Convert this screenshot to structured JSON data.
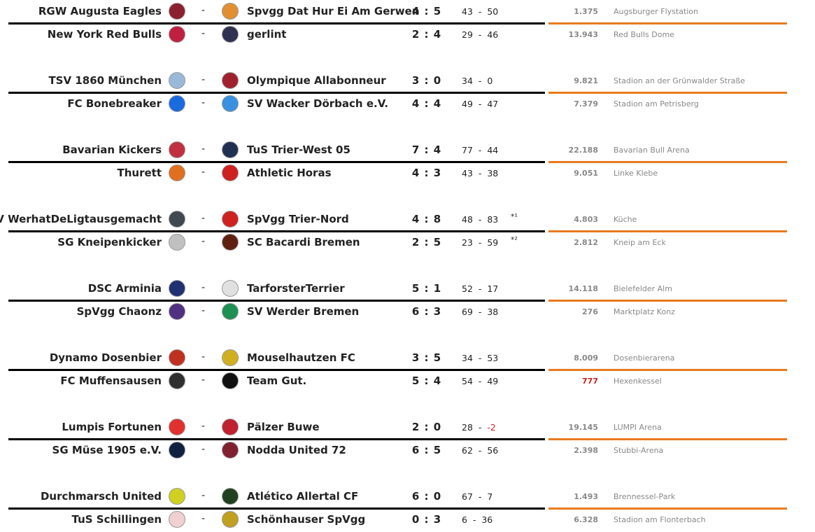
{
  "pairs": [
    {
      "matches": [
        {
          "home": "RGW Augusta Eagles",
          "home_logo": "#8a2030",
          "away": "Spvgg Dat Hur Ei Am Gerwen",
          "away_logo": "#e09030",
          "score": "4 : 5",
          "points_home": "43",
          "points_away": "50",
          "note": "",
          "attendance": "1.375",
          "stadium": "Augsburger Flystation"
        },
        {
          "home": "New York Red Bulls",
          "home_logo": "#c02040",
          "away": "gerlint",
          "away_logo": "#303050",
          "score": "2 : 4",
          "points_home": "29",
          "points_away": "46",
          "note": "",
          "attendance": "13.943",
          "stadium": "Red Bulls Dome"
        }
      ]
    },
    {
      "matches": [
        {
          "home": "TSV 1860 München",
          "home_logo": "#9ab8d8",
          "away": "Olympique Allabonneur",
          "away_logo": "#a02030",
          "score": "3 : 0",
          "points_home": "34",
          "points_away": "0",
          "note": "",
          "attendance": "9.821",
          "stadium": "Stadion an der Grünwalder Straße"
        },
        {
          "home": "FC Bonebreaker",
          "home_logo": "#1a6ae0",
          "away": "SV Wacker Dörbach e.V.",
          "away_logo": "#3a90e0",
          "score": "4 : 4",
          "points_home": "49",
          "points_away": "47",
          "note": "",
          "attendance": "7.379",
          "stadium": "Stadion am Petrisberg"
        }
      ]
    },
    {
      "matches": [
        {
          "home": "Bavarian Kickers",
          "home_logo": "#c03040",
          "away": "TuS Trier-West 05",
          "away_logo": "#203050",
          "score": "7 : 4",
          "points_home": "77",
          "points_away": "44",
          "note": "",
          "attendance": "22.188",
          "stadium": "Bavarian Bull Arena"
        },
        {
          "home": "Thurett",
          "home_logo": "#e07020",
          "away": "Athletic Horas",
          "away_logo": "#d02020",
          "score": "4 : 3",
          "points_home": "43",
          "points_away": "38",
          "note": "",
          "attendance": "9.051",
          "stadium": "Linke Klebe"
        }
      ]
    },
    {
      "matches": [
        {
          "home": "SV WerhatDeLigtausgemacht",
          "home_logo": "#404850",
          "away": "SpVgg Trier-Nord",
          "away_logo": "#d02020",
          "score": "4 : 8",
          "points_home": "48",
          "points_away": "83",
          "note": "*¹",
          "attendance": "4.803",
          "stadium": "Küche"
        },
        {
          "home": "SG Kneipenkicker",
          "home_logo": "#c0c0c0",
          "away": "SC Bacardi Bremen",
          "away_logo": "#602010",
          "score": "2 : 5",
          "points_home": "23",
          "points_away": "59",
          "note": "*²",
          "attendance": "2.812",
          "stadium": "Kneip am Eck"
        }
      ]
    },
    {
      "matches": [
        {
          "home": "DSC Arminia",
          "home_logo": "#203070",
          "away": "TarforsterTerrier",
          "away_logo": "#e0e0e0",
          "score": "5 : 1",
          "points_home": "52",
          "points_away": "17",
          "note": "",
          "attendance": "14.118",
          "stadium": "Bielefelder Alm"
        },
        {
          "home": "SpVgg Chaonz",
          "home_logo": "#503080",
          "away": "SV Werder Bremen",
          "away_logo": "#1d9053",
          "score": "6 : 3",
          "points_home": "69",
          "points_away": "38",
          "note": "",
          "attendance": "276",
          "stadium": "Marktplatz Konz"
        }
      ]
    },
    {
      "matches": [
        {
          "home": "Dynamo Dosenbier",
          "home_logo": "#c03020",
          "away": "Mouselhautzen FC",
          "away_logo": "#d0b020",
          "score": "3 : 5",
          "points_home": "34",
          "points_away": "53",
          "note": "",
          "attendance": "8.009",
          "stadium": "Dosenbierarena"
        },
        {
          "home": "FC Muffensausen",
          "home_logo": "#303030",
          "away": "Team Gut.",
          "away_logo": "#101010",
          "score": "5 : 4",
          "points_home": "54",
          "points_away": "49",
          "note": "",
          "attendance": "777",
          "attendance_color": "#c81e1e",
          "stadium": "Hexenkessel"
        }
      ]
    },
    {
      "matches": [
        {
          "home": "Lumpis Fortunen",
          "home_logo": "#e03030",
          "away": "Pälzer Buwe",
          "away_logo": "#c02030",
          "score": "2 : 0",
          "points_home": "28",
          "points_away": "-2",
          "note": "",
          "attendance": "19.145",
          "stadium": "LUMPI Arena"
        },
        {
          "home": "SG Müse 1905 e.V.",
          "home_logo": "#102040",
          "away": "Nodda United 72",
          "away_logo": "#802030",
          "score": "6 : 5",
          "points_home": "62",
          "points_away": "56",
          "note": "",
          "attendance": "2.398",
          "stadium": "Stubbi-Arena"
        }
      ]
    },
    {
      "matches": [
        {
          "home": "Durchmarsch United",
          "home_logo": "#d0d020",
          "away": "Atlético Allertal CF",
          "away_logo": "#204020",
          "score": "6 : 0",
          "points_home": "67",
          "points_away": "7",
          "note": "",
          "attendance": "1.493",
          "stadium": "Brennessel-Park"
        },
        {
          "home": "TuS Schillingen",
          "home_logo": "#f0d0d0",
          "away": "Schönhauser SpVgg",
          "away_logo": "#c0a020",
          "score": "0 : 3",
          "points_home": "6",
          "points_away": "36",
          "note": "",
          "attendance": "6.328",
          "stadium": "Stadion am Flonterbach"
        }
      ]
    }
  ],
  "colors": {
    "divider_left": "#000000",
    "divider_right": "#e87a1e",
    "negative": "#d42020"
  }
}
